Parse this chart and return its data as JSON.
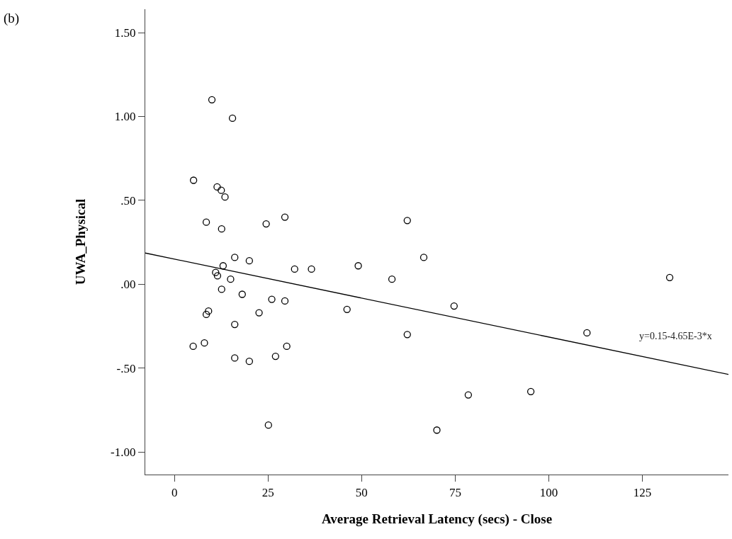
{
  "chart_data": {
    "type": "scatter",
    "xlabel": "Average Retrieval Latency (secs) - Close",
    "ylabel": "UWA_Physical",
    "annotations": [
      "(b)",
      "y=0.15-4.65E-3*x"
    ],
    "series": [
      {
        "color": "#000000",
        "marker": "circle",
        "x": [
          10.0,
          15.5,
          5.1,
          11.4,
          12.5,
          13.5,
          8.5,
          12.6,
          24.5,
          29.5,
          62.2,
          66.6,
          16.1,
          20.0,
          13.0,
          32.1,
          36.6,
          49.1,
          58.1,
          11.0,
          11.5,
          15.0,
          12.6,
          18.1,
          26.0,
          29.5,
          46.1,
          9.1,
          8.5,
          22.6,
          16.1,
          62.2,
          5.0,
          8.0,
          30.0,
          16.1,
          20.0,
          27.0,
          25.1,
          74.7,
          110.2,
          132.3,
          78.5,
          95.2,
          70.1
        ],
        "values": [
          1.1,
          0.99,
          0.62,
          0.58,
          0.56,
          0.52,
          0.37,
          0.33,
          0.36,
          0.4,
          0.38,
          0.16,
          0.16,
          0.14,
          0.11,
          0.09,
          0.09,
          0.11,
          0.03,
          0.07,
          0.05,
          0.03,
          -0.03,
          -0.06,
          -0.09,
          -0.1,
          -0.15,
          -0.16,
          -0.18,
          -0.17,
          -0.24,
          -0.3,
          -0.37,
          -0.35,
          -0.37,
          -0.44,
          -0.46,
          -0.43,
          -0.84,
          -0.13,
          -0.29,
          0.04,
          -0.66,
          -0.64,
          -0.87
        ]
      },
      {
        "type": "line",
        "color": "#000000",
        "marker": "none",
        "x": [
          -7.8,
          148
        ],
        "values": [
          0.186,
          -0.538
        ]
      }
    ],
    "grid": false,
    "xlim": [
      -7.8,
      148
    ],
    "xticks": [
      0,
      25,
      50,
      75,
      100,
      125
    ],
    "ylim": [
      -1.135,
      1.64
    ],
    "yticks": [
      {
        "value": -1,
        "label": "-1.00"
      },
      {
        "value": -0.5,
        "label": "-.50"
      },
      {
        "value": 0,
        "label": ".00"
      },
      {
        "value": 0.5,
        "label": ".50"
      },
      {
        "value": 1,
        "label": "1.00"
      },
      {
        "value": 1.5,
        "label": "1.50"
      }
    ]
  }
}
